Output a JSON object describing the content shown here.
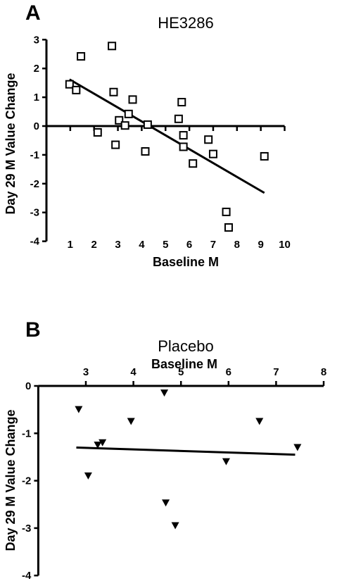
{
  "panel_a": {
    "letter": "A",
    "title": "HE3286",
    "xlabel": "Baseline M",
    "ylabel": "Day 29 M Value Change"
  },
  "panel_b": {
    "letter": "B",
    "title": "Placebo",
    "xlabel": "Baseline M",
    "ylabel": "Day 29 M Value Change"
  },
  "chart_data": [
    {
      "type": "scatter",
      "title": "HE3286",
      "xlabel": "Baseline M",
      "ylabel": "Day 29 M Value Change",
      "xlim": [
        0,
        10
      ],
      "ylim": [
        -4,
        3
      ],
      "x_ticks": [
        1,
        2,
        3,
        4,
        5,
        6,
        7,
        8,
        9,
        10
      ],
      "y_ticks": [
        -4,
        -3,
        -2,
        -1,
        0,
        1,
        2,
        3
      ],
      "x_axis_position": "at y=0",
      "marker": "open-square",
      "points": [
        {
          "x": 0.97,
          "y": 1.45
        },
        {
          "x": 1.25,
          "y": 1.25
        },
        {
          "x": 1.45,
          "y": 2.42
        },
        {
          "x": 2.15,
          "y": -0.22
        },
        {
          "x": 2.75,
          "y": 2.78
        },
        {
          "x": 2.82,
          "y": 1.18
        },
        {
          "x": 2.9,
          "y": -0.65
        },
        {
          "x": 3.05,
          "y": 0.2
        },
        {
          "x": 3.3,
          "y": 0.02
        },
        {
          "x": 3.45,
          "y": 0.42
        },
        {
          "x": 3.62,
          "y": 0.92
        },
        {
          "x": 4.15,
          "y": -0.88
        },
        {
          "x": 4.25,
          "y": 0.05
        },
        {
          "x": 5.55,
          "y": 0.25
        },
        {
          "x": 5.68,
          "y": 0.83
        },
        {
          "x": 5.75,
          "y": -0.32
        },
        {
          "x": 5.75,
          "y": -0.72
        },
        {
          "x": 6.15,
          "y": -1.3
        },
        {
          "x": 6.8,
          "y": -0.47
        },
        {
          "x": 7.0,
          "y": -0.97
        },
        {
          "x": 7.55,
          "y": -2.98
        },
        {
          "x": 7.65,
          "y": -3.52
        },
        {
          "x": 9.15,
          "y": -1.05
        }
      ],
      "fit_line": {
        "x": [
          0.97,
          9.15
        ],
        "y": [
          1.62,
          -2.32
        ]
      }
    },
    {
      "type": "scatter",
      "title": "Placebo",
      "xlabel": "Baseline M",
      "ylabel": "Day 29 M Value Change",
      "xlim": [
        2,
        8
      ],
      "ylim": [
        -4,
        0
      ],
      "x_ticks": [
        3,
        4,
        5,
        6,
        7,
        8
      ],
      "y_ticks": [
        -4,
        -3,
        -2,
        -1,
        0
      ],
      "x_axis_position": "top",
      "marker": "filled-triangle-down",
      "points": [
        {
          "x": 2.85,
          "y": -0.5
        },
        {
          "x": 3.05,
          "y": -1.9
        },
        {
          "x": 3.25,
          "y": -1.25
        },
        {
          "x": 3.35,
          "y": -1.2
        },
        {
          "x": 3.95,
          "y": -0.75
        },
        {
          "x": 4.65,
          "y": -0.15
        },
        {
          "x": 4.68,
          "y": -2.47
        },
        {
          "x": 4.88,
          "y": -2.95
        },
        {
          "x": 5.95,
          "y": -1.6
        },
        {
          "x": 6.65,
          "y": -0.75
        },
        {
          "x": 7.45,
          "y": -1.3
        }
      ],
      "fit_line": {
        "x": [
          2.8,
          7.4
        ],
        "y": [
          -1.3,
          -1.45
        ]
      }
    }
  ]
}
